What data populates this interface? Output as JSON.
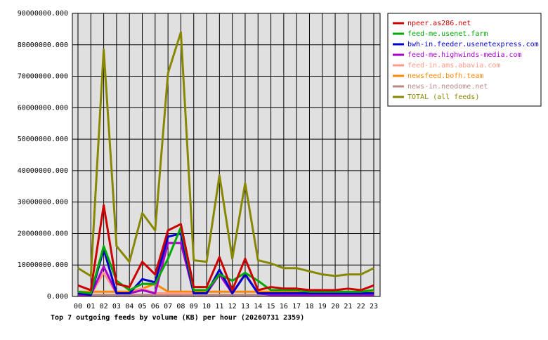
{
  "chart_data": {
    "type": "line",
    "title": "Top 7 outgoing feeds by volume (KB) per hour (20260731 2359)",
    "categories": [
      "00",
      "01",
      "02",
      "03",
      "04",
      "05",
      "06",
      "07",
      "08",
      "09",
      "10",
      "11",
      "12",
      "13",
      "14",
      "15",
      "16",
      "17",
      "18",
      "19",
      "20",
      "21",
      "22",
      "23"
    ],
    "ylim": [
      0,
      90000000
    ],
    "yticks": [
      {
        "value": 0,
        "label": "0.000"
      },
      {
        "value": 10000000,
        "label": "10000000.000"
      },
      {
        "value": 20000000,
        "label": "20000000.000"
      },
      {
        "value": 30000000,
        "label": "30000000.000"
      },
      {
        "value": 40000000,
        "label": "40000000.000"
      },
      {
        "value": 50000000,
        "label": "50000000.000"
      },
      {
        "value": 60000000,
        "label": "60000000.000"
      },
      {
        "value": 70000000,
        "label": "70000000.000"
      },
      {
        "value": 80000000,
        "label": "80000000.000"
      },
      {
        "value": 90000000,
        "label": "90000000.000"
      }
    ],
    "grid": true,
    "series": [
      {
        "name": "npeer.as286.net",
        "color": "#cc0000",
        "values": [
          3500000,
          2000000,
          29000000,
          4000000,
          3000000,
          11000000,
          7000000,
          21000000,
          23000000,
          3000000,
          3000000,
          12500000,
          2000000,
          12000000,
          2000000,
          3000000,
          2500000,
          2500000,
          2000000,
          2000000,
          2000000,
          2500000,
          2000000,
          3500000
        ]
      },
      {
        "name": "feed-me.usenet.farm",
        "color": "#00aa00",
        "values": [
          1500000,
          1000000,
          16000000,
          5000000,
          2000000,
          4000000,
          4000000,
          12000000,
          22000000,
          2000000,
          2000000,
          7000000,
          5000000,
          7500000,
          5000000,
          2000000,
          2000000,
          2000000,
          1500000,
          1500000,
          1500000,
          1500000,
          1500000,
          2000000
        ]
      },
      {
        "name": "bwh-in.feeder.usenetexpress.com",
        "color": "#0000cc",
        "values": [
          1000000,
          500000,
          15000000,
          1000000,
          1000000,
          5500000,
          4500000,
          19000000,
          20000000,
          1000000,
          1000000,
          8500000,
          1000000,
          7000000,
          1000000,
          1000000,
          1000000,
          1000000,
          1000000,
          1000000,
          1000000,
          1000000,
          1000000,
          1000000
        ]
      },
      {
        "name": "feed-me.highwinds-media.com",
        "color": "#aa00cc",
        "values": [
          500000,
          500000,
          9500000,
          1000000,
          1000000,
          2000000,
          1000000,
          17000000,
          17000000,
          1000000,
          1000000,
          7000000,
          1000000,
          7000000,
          1000000,
          500000,
          500000,
          500000,
          500000,
          500000,
          500000,
          500000,
          500000,
          500000
        ]
      },
      {
        "name": "feed-in.ams.abavia.com",
        "color": "#ff9988",
        "values": [
          500000,
          500000,
          7500000,
          1000000,
          1000000,
          2500000,
          1000000,
          1000000,
          1000000,
          1000000,
          1000000,
          7500000,
          1000000,
          7500000,
          1000000,
          500000,
          500000,
          500000,
          500000,
          500000,
          500000,
          500000,
          500000,
          500000
        ]
      },
      {
        "name": "newsfeed.bofh.team",
        "color": "#ff8800",
        "values": [
          1500000,
          1500000,
          1500000,
          1500000,
          1500000,
          2500000,
          4000000,
          1500000,
          1500000,
          1500000,
          1500000,
          1500000,
          1500000,
          1500000,
          1500000,
          1500000,
          1500000,
          1500000,
          1500000,
          1500000,
          1500000,
          1500000,
          1500000,
          1500000
        ]
      },
      {
        "name": "news-in.neodome.net",
        "color": "#bb8888",
        "values": [
          500000,
          500000,
          500000,
          500000,
          500000,
          500000,
          500000,
          500000,
          500000,
          500000,
          500000,
          500000,
          500000,
          500000,
          500000,
          500000,
          500000,
          500000,
          500000,
          500000,
          500000,
          500000,
          500000,
          500000
        ]
      },
      {
        "name": "TOTAL (all feeds)",
        "color": "#888800",
        "values": [
          9000000,
          6500000,
          78500000,
          16000000,
          11000000,
          26500000,
          21000000,
          71000000,
          84000000,
          11500000,
          11000000,
          38500000,
          12000000,
          36000000,
          11500000,
          10500000,
          9000000,
          9000000,
          8000000,
          7000000,
          6500000,
          7000000,
          7000000,
          9000000
        ]
      }
    ]
  }
}
